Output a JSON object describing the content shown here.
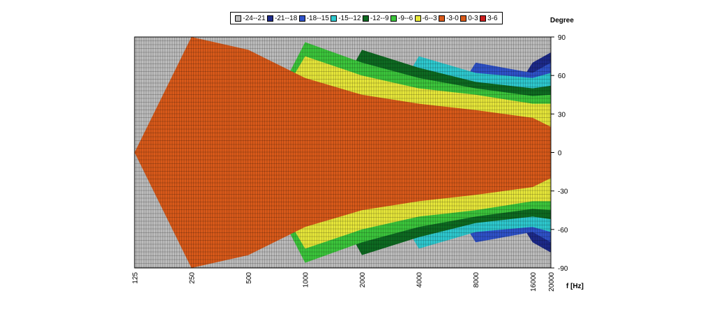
{
  "chart_data": {
    "type": "area",
    "title": "",
    "xlabel": "f [Hz]",
    "ylabel": "Degree",
    "x_scale": "log",
    "xlim": [
      125,
      20000
    ],
    "ylim": [
      -90,
      90
    ],
    "x_ticks": [
      125,
      250,
      500,
      1000,
      2000,
      4000,
      8000,
      16000,
      20000
    ],
    "x_tick_labels": [
      "125",
      "250",
      "500",
      "1000",
      "2000",
      "4000",
      "8000",
      "16000",
      "20000"
    ],
    "y_ticks": [
      90,
      60,
      30,
      0,
      -30,
      -60,
      -90
    ],
    "y_tick_labels": [
      "90",
      "60",
      "30",
      "0",
      "-30",
      "-60",
      "-90"
    ],
    "grid": true,
    "legend_position": "top",
    "legend": [
      {
        "label": "-24--21",
        "color": "#bdbdbd"
      },
      {
        "label": "-21--18",
        "color": "#1d2a8a"
      },
      {
        "label": "-18--15",
        "color": "#2f52c9"
      },
      {
        "label": "-15--12",
        "color": "#2ec9cf"
      },
      {
        "label": "-12--9",
        "color": "#0e6b22"
      },
      {
        "label": "-9--6",
        "color": "#3cc63c"
      },
      {
        "label": "-6--3",
        "color": "#e7e73a"
      },
      {
        "label": "-3-0",
        "color": "#d95a1a"
      },
      {
        "label": "0-3",
        "color": "#d95a1a"
      },
      {
        "label": "3-6",
        "color": "#cc1f1f"
      }
    ],
    "frequencies": [
      125,
      250,
      500,
      1000,
      2000,
      4000,
      8000,
      16000,
      20000
    ],
    "contour_levels": [
      -24,
      -21,
      -18,
      -15,
      -12,
      -9,
      -6,
      -3,
      0
    ],
    "contour_angles_upper": [
      [
        0,
        0,
        0,
        0,
        0,
        0,
        0,
        0,
        0
      ],
      [
        0,
        0,
        0,
        0,
        0,
        0,
        0,
        70,
        78
      ],
      [
        0,
        0,
        0,
        0,
        0,
        0,
        70,
        62,
        70
      ],
      [
        0,
        0,
        0,
        0,
        0,
        75,
        62,
        58,
        62
      ],
      [
        0,
        0,
        0,
        0,
        80,
        66,
        55,
        50,
        52
      ],
      [
        0,
        0,
        0,
        86,
        70,
        58,
        50,
        44,
        45
      ],
      [
        0,
        0,
        0,
        75,
        60,
        50,
        45,
        38,
        38
      ],
      [
        0,
        90,
        80,
        58,
        45,
        38,
        33,
        27,
        20
      ]
    ],
    "contour_angles_lower": [
      [
        0,
        0,
        0,
        0,
        0,
        0,
        0,
        0,
        0
      ],
      [
        0,
        0,
        0,
        0,
        0,
        0,
        0,
        -70,
        -78
      ],
      [
        0,
        0,
        0,
        0,
        0,
        0,
        -70,
        -62,
        -70
      ],
      [
        0,
        0,
        0,
        0,
        0,
        -75,
        -62,
        -58,
        -62
      ],
      [
        0,
        0,
        0,
        0,
        -80,
        -66,
        -55,
        -50,
        -52
      ],
      [
        0,
        0,
        0,
        -86,
        -70,
        -58,
        -50,
        -44,
        -45
      ],
      [
        0,
        0,
        0,
        -75,
        -60,
        -50,
        -45,
        -38,
        -38
      ],
      [
        0,
        -90,
        -80,
        -58,
        -45,
        -38,
        -33,
        -27,
        -20
      ]
    ]
  }
}
